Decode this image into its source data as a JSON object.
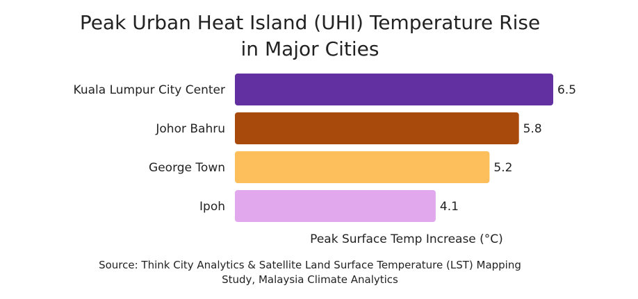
{
  "chart_data": {
    "type": "bar",
    "orientation": "horizontal",
    "title": "Peak Urban Heat Island (UHI) Temperature Rise in Major Cities",
    "title_lines": [
      "Peak Urban Heat Island (UHI) Temperature Rise",
      "in Major Cities"
    ],
    "categories": [
      "Kuala Lumpur City Center",
      "Johor Bahru",
      "George Town",
      "Ipoh"
    ],
    "values": [
      6.5,
      5.8,
      5.2,
      4.1
    ],
    "value_labels": [
      "6.5",
      "5.8",
      "5.2",
      "4.1"
    ],
    "colors": [
      "#6230a1",
      "#a94a0d",
      "#fdbf5c",
      "#e2a8ee"
    ],
    "xlabel": "Peak Surface Temp Increase (°C)",
    "ylabel": "",
    "xlim": [
      0,
      6.5
    ],
    "grid": false,
    "legend": "none"
  },
  "source_lines": [
    "Source: Think City Analytics & Satellite Land Surface Temperature (LST) Mapping",
    "Study, Malaysia Climate Analytics"
  ]
}
